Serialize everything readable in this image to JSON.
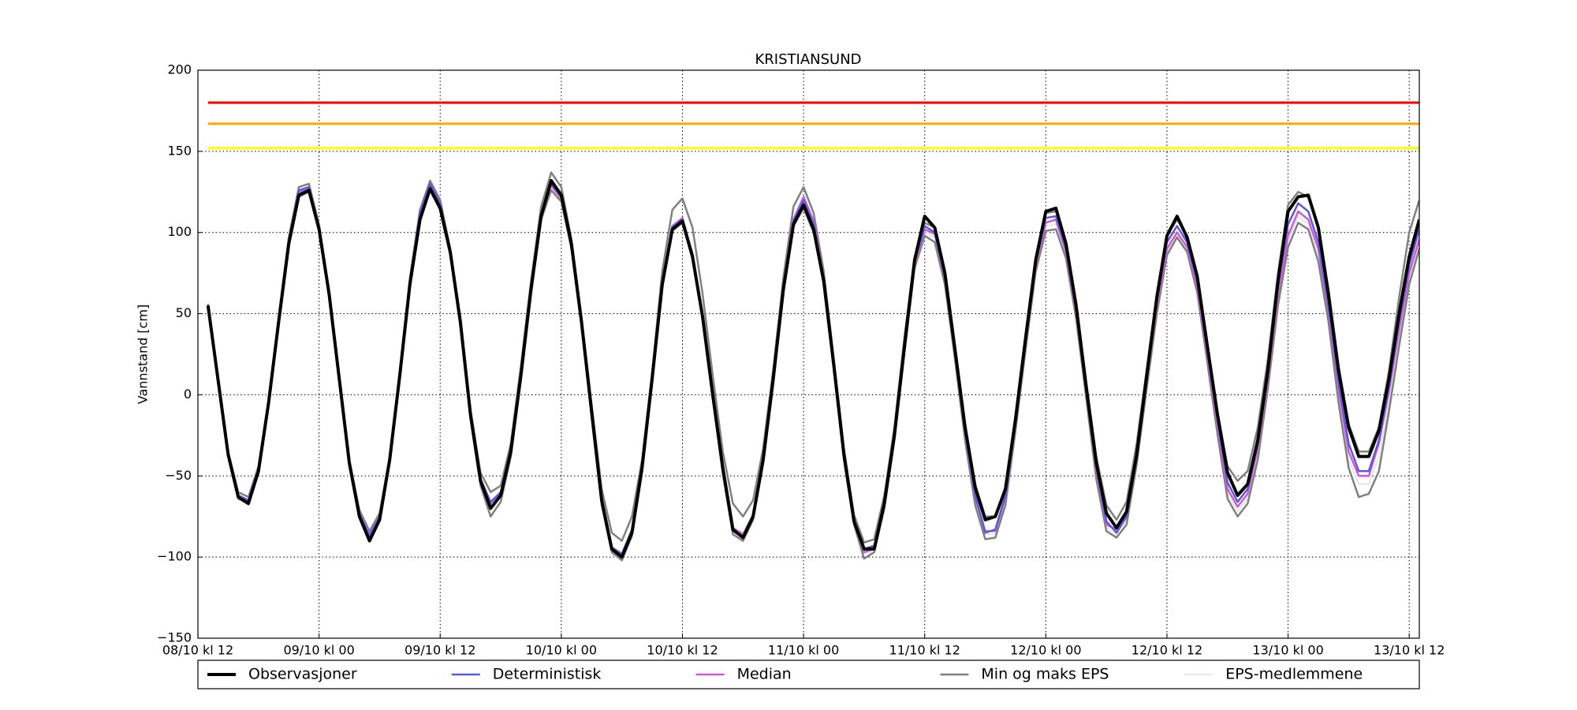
{
  "chart_data": {
    "type": "line",
    "title": "KRISTIANSUND",
    "ylabel": "Vannstand [cm]",
    "x": [
      "08/10 kl 13",
      "08/10 kl 14",
      "08/10 kl 15",
      "08/10 kl 16",
      "08/10 kl 17",
      "08/10 kl 18",
      "08/10 kl 19",
      "08/10 kl 20",
      "08/10 kl 21",
      "08/10 kl 22",
      "08/10 kl 23",
      "09/10 kl 00",
      "09/10 kl 01",
      "09/10 kl 02",
      "09/10 kl 03",
      "09/10 kl 04",
      "09/10 kl 05",
      "09/10 kl 06",
      "09/10 kl 07",
      "09/10 kl 08",
      "09/10 kl 09",
      "09/10 kl 10",
      "09/10 kl 11",
      "09/10 kl 12",
      "09/10 kl 13",
      "09/10 kl 14",
      "09/10 kl 15",
      "09/10 kl 16",
      "09/10 kl 17",
      "09/10 kl 18",
      "09/10 kl 19",
      "09/10 kl 20",
      "09/10 kl 21",
      "09/10 kl 22",
      "09/10 kl 23",
      "10/10 kl 00",
      "10/10 kl 01",
      "10/10 kl 02",
      "10/10 kl 03",
      "10/10 kl 04",
      "10/10 kl 05",
      "10/10 kl 06",
      "10/10 kl 07",
      "10/10 kl 08",
      "10/10 kl 09",
      "10/10 kl 10",
      "10/10 kl 11",
      "10/10 kl 12",
      "10/10 kl 13",
      "10/10 kl 14",
      "10/10 kl 15",
      "10/10 kl 16",
      "10/10 kl 17",
      "10/10 kl 18",
      "10/10 kl 19",
      "10/10 kl 20",
      "10/10 kl 21",
      "10/10 kl 22",
      "10/10 kl 23",
      "11/10 kl 00",
      "11/10 kl 01",
      "11/10 kl 02",
      "11/10 kl 03",
      "11/10 kl 04",
      "11/10 kl 05",
      "11/10 kl 06",
      "11/10 kl 07",
      "11/10 kl 08",
      "11/10 kl 09",
      "11/10 kl 10",
      "11/10 kl 11",
      "11/10 kl 12",
      "11/10 kl 13",
      "11/10 kl 14",
      "11/10 kl 15",
      "11/10 kl 16",
      "11/10 kl 17",
      "11/10 kl 18",
      "11/10 kl 19",
      "11/10 kl 20",
      "11/10 kl 21",
      "11/10 kl 22",
      "11/10 kl 23",
      "12/10 kl 00",
      "12/10 kl 01",
      "12/10 kl 02",
      "12/10 kl 03",
      "12/10 kl 04",
      "12/10 kl 05",
      "12/10 kl 06",
      "12/10 kl 07",
      "12/10 kl 08",
      "12/10 kl 09",
      "12/10 kl 10",
      "12/10 kl 11",
      "12/10 kl 12",
      "12/10 kl 13",
      "12/10 kl 14",
      "12/10 kl 15",
      "12/10 kl 16",
      "12/10 kl 17",
      "12/10 kl 18",
      "12/10 kl 19",
      "12/10 kl 20",
      "12/10 kl 21",
      "12/10 kl 22",
      "12/10 kl 23",
      "13/10 kl 00",
      "13/10 kl 01",
      "13/10 kl 02",
      "13/10 kl 03",
      "13/10 kl 04",
      "13/10 kl 05",
      "13/10 kl 06",
      "13/10 kl 07",
      "13/10 kl 08",
      "13/10 kl 09",
      "13/10 kl 10",
      "13/10 kl 11",
      "13/10 kl 12",
      "13/10 kl 13"
    ],
    "series": [
      {
        "name": "Observasjoner",
        "color": "#000000",
        "values": [
          55,
          9,
          -37,
          -63,
          -67,
          -47,
          -5,
          45,
          93,
          123,
          126,
          102,
          62,
          10,
          -42,
          -75,
          -90,
          -77,
          -40,
          12,
          68,
          108,
          127,
          115,
          88,
          45,
          -12,
          -53,
          -70,
          -62,
          -35,
          12,
          65,
          110,
          132,
          123,
          93,
          45,
          -10,
          -65,
          -95,
          -100,
          -85,
          -45,
          10,
          68,
          102,
          107,
          85,
          48,
          0,
          -45,
          -83,
          -88,
          -75,
          -40,
          10,
          65,
          105,
          117,
          102,
          70,
          18,
          -37,
          -78,
          -95,
          -95,
          -67,
          -25,
          30,
          83,
          110,
          103,
          75,
          28,
          -20,
          -57,
          -77,
          -75,
          -58,
          -15,
          35,
          83,
          113,
          115,
          93,
          55,
          5,
          -42,
          -73,
          -82,
          -72,
          -37,
          12,
          60,
          98,
          110,
          97,
          73,
          30,
          -12,
          -48,
          -62,
          -55,
          -28,
          15,
          70,
          113,
          122,
          123,
          103,
          62,
          15,
          -20,
          -38,
          -38,
          -22,
          10,
          50,
          85,
          108
        ]
      },
      {
        "name": "Deterministisk",
        "color": "#5a5ad8",
        "values": [
          55,
          9,
          -37,
          -62,
          -65,
          -46,
          -5,
          46,
          95,
          126,
          128,
          103,
          62,
          10,
          -42,
          -73,
          -87,
          -75,
          -40,
          13,
          70,
          112,
          130,
          118,
          88,
          44,
          -12,
          -52,
          -66,
          -60,
          -34,
          14,
          66,
          112,
          130,
          122,
          93,
          45,
          -10,
          -64,
          -94,
          -98,
          -83,
          -45,
          10,
          68,
          103,
          108,
          86,
          48,
          0,
          -46,
          -84,
          -88,
          -75,
          -40,
          10,
          66,
          107,
          120,
          105,
          71,
          18,
          -37,
          -78,
          -95,
          -93,
          -66,
          -25,
          30,
          82,
          104,
          100,
          73,
          27,
          -22,
          -62,
          -85,
          -83,
          -62,
          -17,
          34,
          82,
          109,
          110,
          90,
          53,
          4,
          -44,
          -78,
          -85,
          -75,
          -38,
          10,
          58,
          94,
          104,
          94,
          70,
          27,
          -15,
          -54,
          -66,
          -58,
          -30,
          13,
          68,
          105,
          118,
          113,
          94,
          55,
          8,
          -30,
          -47,
          -47,
          -28,
          5,
          45,
          80,
          102
        ]
      },
      {
        "name": "Median",
        "color": "#cc5ad8",
        "values": [
          55,
          9,
          -37,
          -62,
          -65,
          -46,
          -5,
          46,
          95,
          125,
          127,
          103,
          62,
          10,
          -42,
          -73,
          -86,
          -75,
          -40,
          13,
          70,
          111,
          129,
          117,
          88,
          44,
          -12,
          -52,
          -67,
          -60,
          -34,
          14,
          66,
          112,
          129,
          121,
          93,
          45,
          -10,
          -66,
          -95,
          -99,
          -84,
          -45,
          10,
          70,
          104,
          109,
          87,
          48,
          0,
          -47,
          -82,
          -86,
          -74,
          -40,
          10,
          67,
          108,
          122,
          107,
          72,
          18,
          -37,
          -78,
          -97,
          -95,
          -67,
          -25,
          30,
          80,
          102,
          99,
          72,
          26,
          -24,
          -63,
          -84,
          -84,
          -63,
          -18,
          32,
          80,
          106,
          108,
          88,
          51,
          2,
          -46,
          -80,
          -83,
          -74,
          -38,
          9,
          55,
          90,
          100,
          91,
          67,
          24,
          -18,
          -58,
          -69,
          -61,
          -33,
          10,
          62,
          98,
          113,
          108,
          90,
          52,
          4,
          -35,
          -50,
          -50,
          -30,
          2,
          40,
          75,
          96
        ]
      },
      {
        "name": "Min og maks EPS",
        "color": "#808080",
        "low": [
          54,
          8,
          -38,
          -64,
          -67,
          -48,
          -7,
          44,
          93,
          122,
          125,
          101,
          60,
          8,
          -44,
          -75,
          -89,
          -77,
          -42,
          11,
          68,
          109,
          126,
          114,
          86,
          42,
          -15,
          -56,
          -75,
          -66,
          -38,
          10,
          62,
          108,
          126,
          119,
          90,
          42,
          -14,
          -68,
          -97,
          -102,
          -87,
          -48,
          7,
          66,
          101,
          106,
          84,
          46,
          -2,
          -49,
          -86,
          -90,
          -77,
          -42,
          7,
          63,
          104,
          115,
          100,
          68,
          15,
          -40,
          -80,
          -101,
          -97,
          -70,
          -28,
          26,
          78,
          98,
          94,
          68,
          22,
          -28,
          -68,
          -89,
          -88,
          -68,
          -22,
          28,
          76,
          101,
          102,
          84,
          47,
          -2,
          -52,
          -84,
          -88,
          -80,
          -43,
          4,
          50,
          86,
          97,
          88,
          63,
          20,
          -24,
          -64,
          -75,
          -67,
          -40,
          4,
          55,
          91,
          106,
          102,
          82,
          45,
          -5,
          -45,
          -63,
          -61,
          -47,
          -10,
          30,
          68,
          90
        ],
        "high": [
          56,
          10,
          -35,
          -60,
          -63,
          -44,
          -3,
          48,
          97,
          128,
          130,
          105,
          64,
          12,
          -40,
          -71,
          -84,
          -73,
          -38,
          15,
          72,
          114,
          132,
          120,
          90,
          47,
          -9,
          -48,
          -60,
          -56,
          -30,
          18,
          70,
          116,
          137,
          128,
          96,
          48,
          -6,
          -58,
          -85,
          -90,
          -75,
          -40,
          14,
          76,
          114,
          121,
          103,
          62,
          12,
          -35,
          -67,
          -75,
          -65,
          -33,
          16,
          72,
          116,
          128,
          112,
          76,
          22,
          -33,
          -74,
          -91,
          -89,
          -62,
          -20,
          36,
          85,
          106,
          103,
          76,
          30,
          -18,
          -55,
          -75,
          -75,
          -58,
          -12,
          38,
          85,
          112,
          113,
          94,
          57,
          8,
          -38,
          -68,
          -77,
          -66,
          -30,
          16,
          63,
          98,
          108,
          98,
          74,
          32,
          -10,
          -44,
          -53,
          -47,
          -20,
          22,
          75,
          117,
          125,
          122,
          103,
          65,
          18,
          -18,
          -35,
          -35,
          -20,
          15,
          60,
          100,
          120
        ]
      },
      {
        "name": "EPS-medlemmene",
        "color": "#e0e0e0",
        "values": [
          55,
          9,
          -37,
          -63,
          -66,
          -47,
          -6,
          45,
          94,
          124,
          126,
          102,
          61,
          9,
          -43,
          -74,
          -87,
          -76,
          -41,
          12,
          69,
          110,
          128,
          116,
          87,
          43,
          -13,
          -54,
          -70,
          -62,
          -36,
          12,
          64,
          110,
          127,
          120,
          91,
          43,
          -12,
          -67,
          -96,
          -100,
          -85,
          -46,
          9,
          69,
          103,
          108,
          86,
          47,
          -1,
          -48,
          -84,
          -88,
          -75,
          -41,
          9,
          66,
          107,
          120,
          105,
          70,
          17,
          -38,
          -79,
          -98,
          -96,
          -68,
          -26,
          29,
          79,
          100,
          97,
          70,
          24,
          -26,
          -65,
          -86,
          -86,
          -65,
          -20,
          30,
          78,
          104,
          105,
          86,
          49,
          0,
          -49,
          -82,
          -86,
          -77,
          -40,
          7,
          53,
          88,
          98,
          89,
          65,
          22,
          -21,
          -61,
          -72,
          -64,
          -36,
          7,
          59,
          95,
          110,
          105,
          86,
          48,
          0,
          -40,
          -55,
          -55,
          -38,
          -5,
          35,
          72,
          93
        ]
      }
    ],
    "thresholds": [
      {
        "value": 180,
        "color": "#ff0000"
      },
      {
        "value": 167,
        "color": "#ffa500"
      },
      {
        "value": 152,
        "color": "#ffff00"
      }
    ],
    "xlim": [
      "08/10 kl 12",
      "13/10 kl 13"
    ],
    "xticks": [
      "08/10 kl 12",
      "09/10 kl 00",
      "09/10 kl 12",
      "10/10 kl 00",
      "10/10 kl 12",
      "11/10 kl 00",
      "11/10 kl 12",
      "12/10 kl 00",
      "12/10 kl 12",
      "13/10 kl 00",
      "13/10 kl 12"
    ],
    "ylim": [
      -150,
      200
    ],
    "yticks": [
      {
        "value": -150,
        "label": "−150"
      },
      {
        "value": -100,
        "label": "−100"
      },
      {
        "value": -50,
        "label": "−50"
      },
      0,
      50,
      100,
      150,
      200
    ],
    "grid": true
  }
}
